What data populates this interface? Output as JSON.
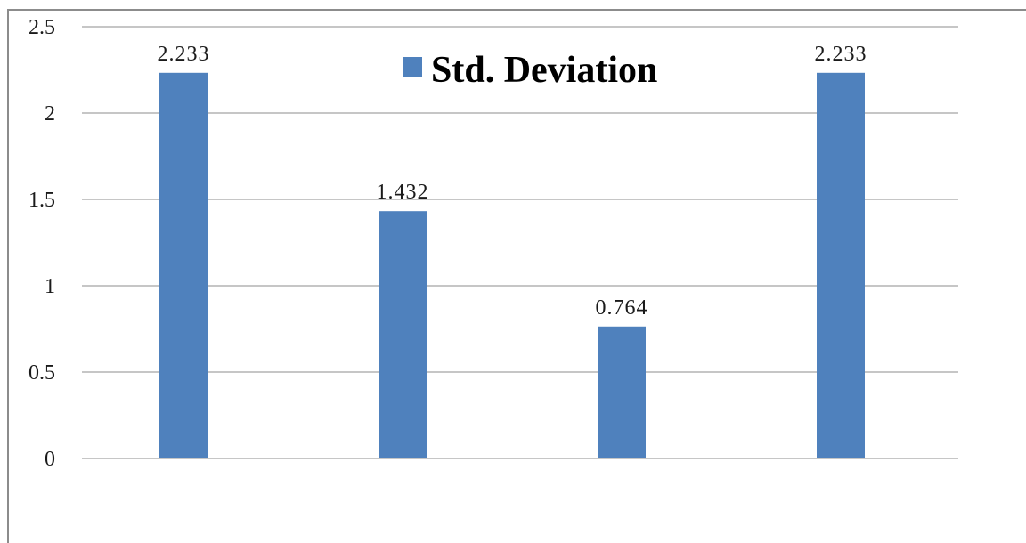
{
  "chart_data": {
    "type": "bar",
    "categories": [
      "",
      "",
      "",
      ""
    ],
    "series": [
      {
        "name": "Std. Deviation",
        "values": [
          2.233,
          1.432,
          0.764,
          2.233
        ]
      }
    ],
    "data_labels": [
      "2.233",
      "1.432",
      "0.764",
      "2.233"
    ],
    "y_ticks": [
      "0",
      "0.5",
      "1",
      "1.5",
      "2",
      "2.5"
    ],
    "y_tick_values": [
      0,
      0.5,
      1,
      1.5,
      2,
      2.5
    ],
    "ylim": [
      0,
      2.5
    ],
    "title": "",
    "xlabel": "",
    "ylabel": "",
    "grid": true,
    "legend": {
      "position": "top-center",
      "label": "Std. Deviation"
    },
    "colors": {
      "bar": "#4f81bd",
      "grid": "#8c8c8c",
      "axis": "#8c8c8c"
    }
  }
}
